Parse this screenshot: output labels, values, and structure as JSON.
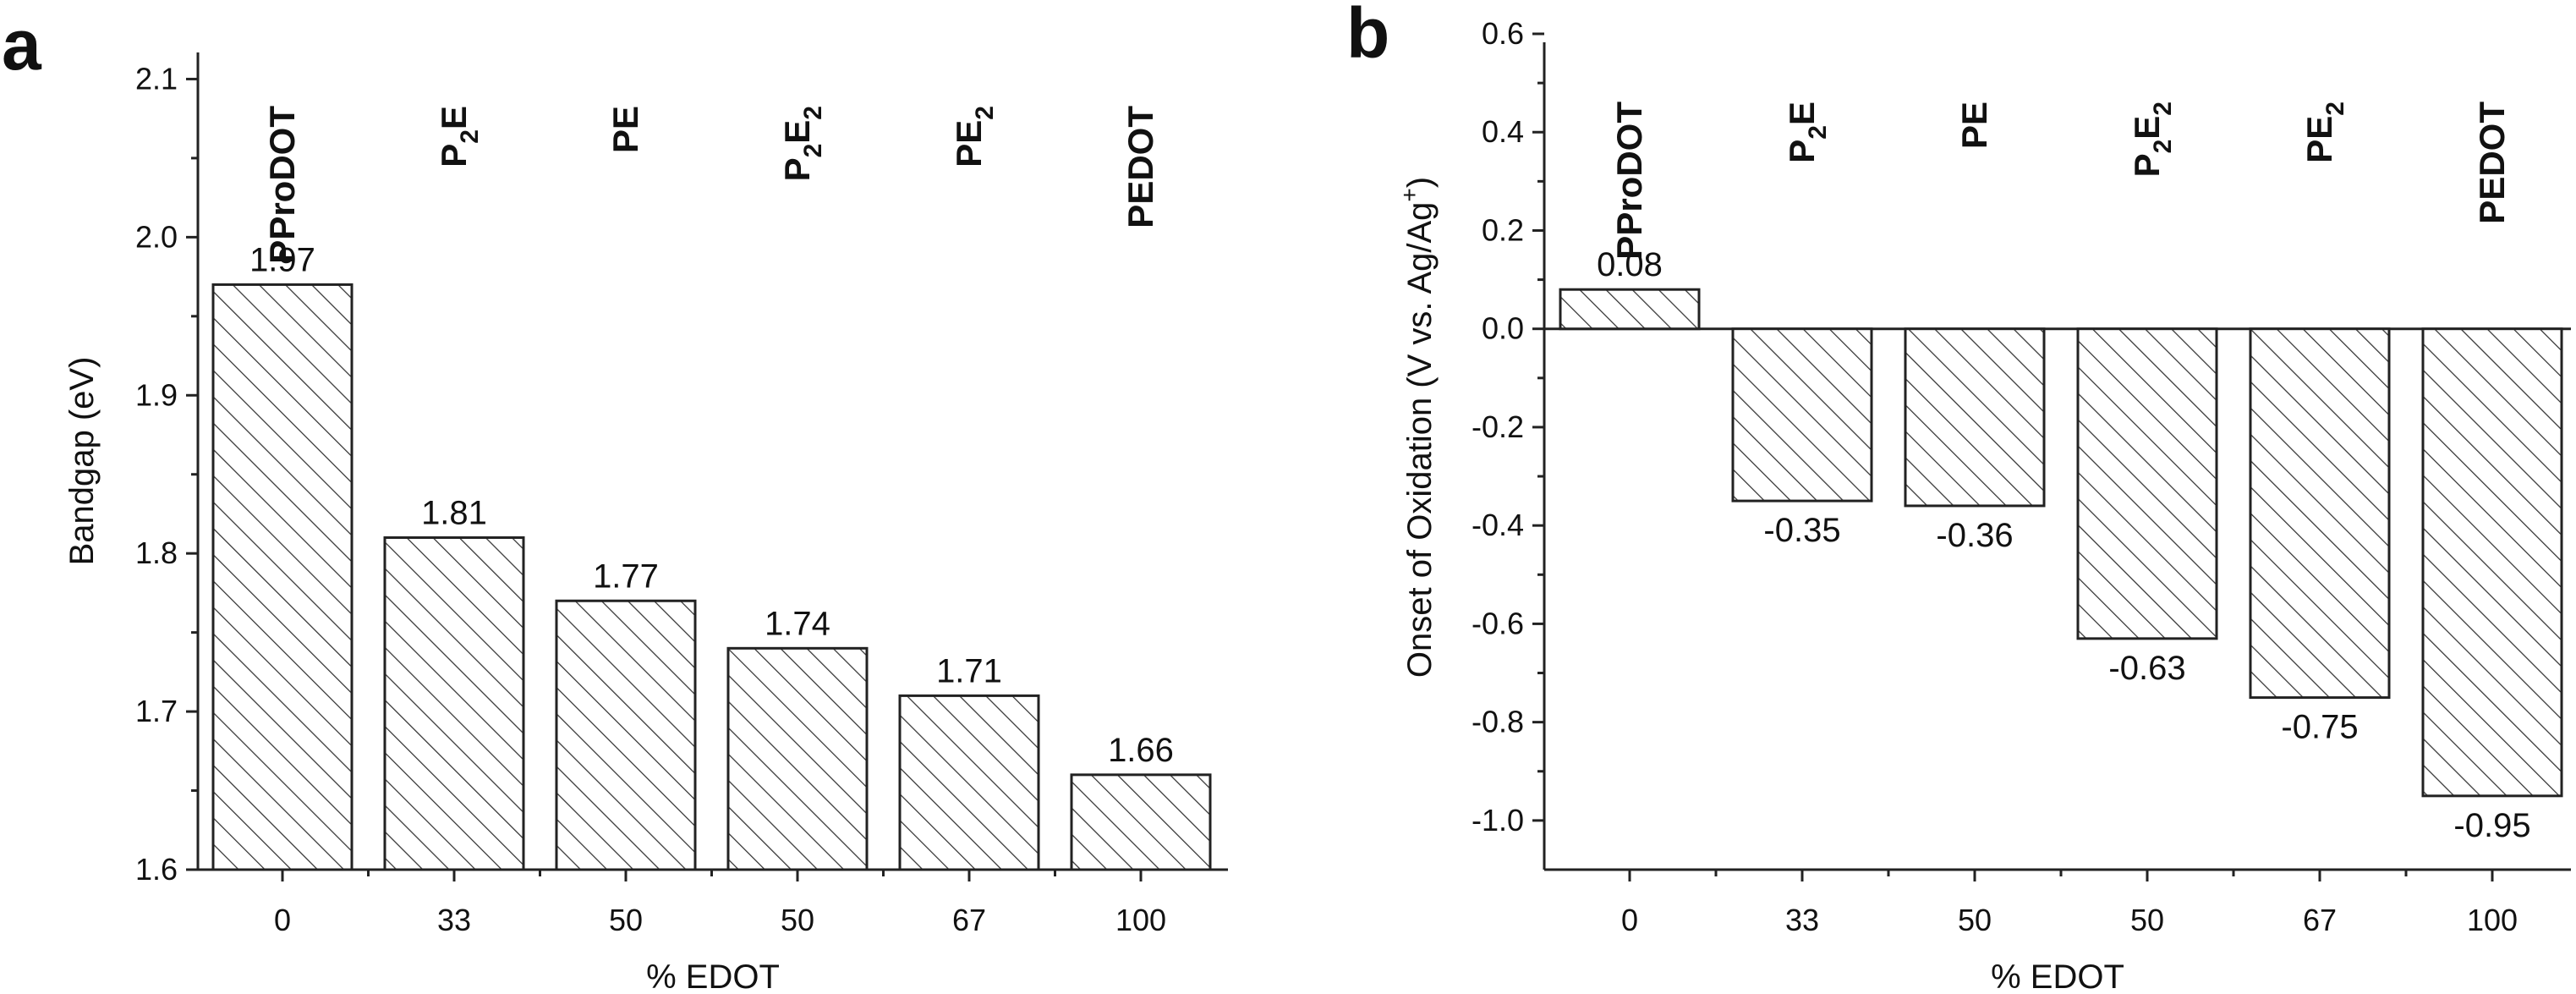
{
  "chart_data": [
    {
      "type": "bar",
      "panel": "a",
      "categories": [
        "0",
        "33",
        "50",
        "50",
        "67",
        "100"
      ],
      "composition_labels": [
        {
          "base": "PProDOT",
          "sub": "",
          "tail": "",
          "sub2": ""
        },
        {
          "base": "P",
          "sub": "2",
          "tail": "E",
          "sub2": ""
        },
        {
          "base": "PE",
          "sub": "",
          "tail": "",
          "sub2": ""
        },
        {
          "base": "P",
          "sub": "2",
          "tail": "E",
          "sub2": "2"
        },
        {
          "base": "PE",
          "sub": "2",
          "tail": "",
          "sub2": ""
        },
        {
          "base": "PEDOT",
          "sub": "",
          "tail": "",
          "sub2": ""
        }
      ],
      "values": [
        1.97,
        1.81,
        1.77,
        1.74,
        1.71,
        1.66
      ],
      "value_labels": [
        "1.97",
        "1.81",
        "1.77",
        "1.74",
        "1.71",
        "1.66"
      ],
      "xlabel": "% EDOT",
      "ylabel": "Bandgap (eV)",
      "ylim": [
        1.6,
        2.15
      ],
      "yticks": [
        1.6,
        1.7,
        1.8,
        1.9,
        2.0,
        2.1
      ],
      "ytick_labels": [
        "1.6",
        "1.7",
        "1.8",
        "1.9",
        "2.0",
        "2.1"
      ],
      "bar_fill": "hatched"
    },
    {
      "type": "bar",
      "panel": "b",
      "categories": [
        "0",
        "33",
        "50",
        "50",
        "67",
        "100"
      ],
      "composition_labels": [
        {
          "base": "PProDOT",
          "sub": "",
          "tail": "",
          "sub2": ""
        },
        {
          "base": "P",
          "sub": "2",
          "tail": "E",
          "sub2": ""
        },
        {
          "base": "PE",
          "sub": "",
          "tail": "",
          "sub2": ""
        },
        {
          "base": "P",
          "sub": "2",
          "tail": "E",
          "sub2": "2"
        },
        {
          "base": "PE",
          "sub": "2",
          "tail": "",
          "sub2": ""
        },
        {
          "base": "PEDOT",
          "sub": "",
          "tail": "",
          "sub2": ""
        }
      ],
      "values": [
        0.08,
        -0.35,
        -0.36,
        -0.63,
        -0.75,
        -0.95
      ],
      "value_labels": [
        "0.08",
        "-0.35",
        "-0.36",
        "-0.63",
        "-0.75",
        "-0.95"
      ],
      "xlabel": "% EDOT",
      "ylabel": "Onset of Oxidation (V vs. Ag/Ag",
      "ylabel_sup": "+",
      "ylabel_end": ")",
      "ylim": [
        -1.1,
        0.6
      ],
      "yticks": [
        -1.0,
        -0.8,
        -0.6,
        -0.4,
        -0.2,
        0.0,
        0.2,
        0.4,
        0.6
      ],
      "ytick_labels": [
        "-1.0",
        "-0.8",
        "-0.6",
        "-0.4",
        "-0.2",
        "0.0",
        "0.2",
        "0.4",
        "0.6"
      ],
      "baseline": 0.0,
      "bar_fill": "hatched"
    }
  ]
}
